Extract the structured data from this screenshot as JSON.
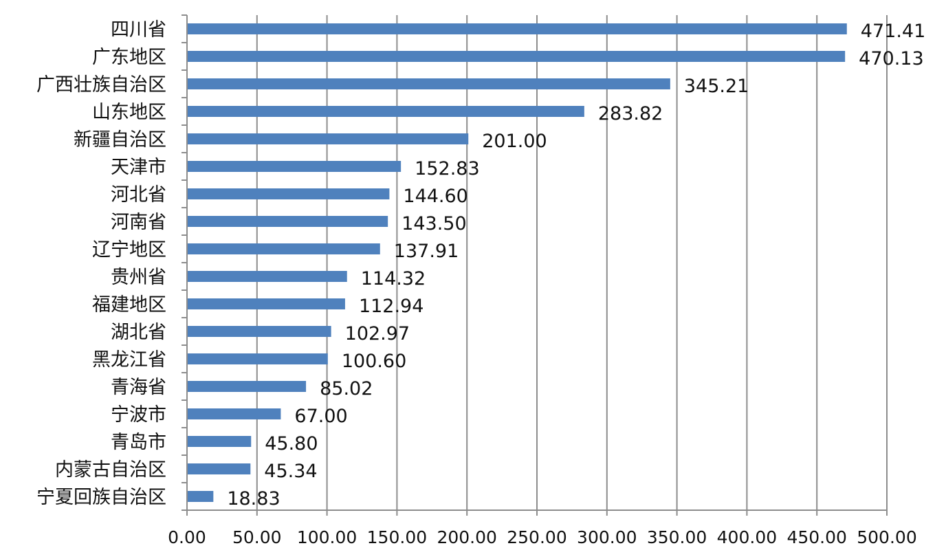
{
  "chart_data": {
    "type": "bar",
    "orientation": "horizontal",
    "categories": [
      "四川省",
      "广东地区",
      "广西壮族自治区",
      "山东地区",
      "新疆自治区",
      "天津市",
      "河北省",
      "河南省",
      "辽宁地区",
      "贵州省",
      "福建地区",
      "湖北省",
      "黑龙江省",
      "青海省",
      "宁波市",
      "青岛市",
      "内蒙古自治区",
      "宁夏回族自治区"
    ],
    "values": [
      471.41,
      470.13,
      345.21,
      283.82,
      201.0,
      152.83,
      144.6,
      143.5,
      137.91,
      114.32,
      112.94,
      102.97,
      100.6,
      85.02,
      67.0,
      45.8,
      45.34,
      18.83
    ],
    "value_labels": [
      "471.41",
      "470.13",
      "345.21",
      "283.82",
      "201.00",
      "152.83",
      "144.60",
      "143.50",
      "137.91",
      "114.32",
      "112.94",
      "102.97",
      "100.60",
      "85.02",
      "67.00",
      "45.80",
      "45.34",
      "18.83"
    ],
    "xlim": [
      0,
      500
    ],
    "x_ticks": [
      "0.00",
      "50.00",
      "100.00",
      "150.00",
      "200.00",
      "250.00",
      "300.00",
      "350.00",
      "400.00",
      "450.00",
      "500.00"
    ],
    "grid": "vertical",
    "bar_color": "#4f81bd",
    "grid_color": "#8c8c8c",
    "axis_color": "#8c8c8c",
    "title": "",
    "xlabel": "",
    "ylabel": ""
  }
}
